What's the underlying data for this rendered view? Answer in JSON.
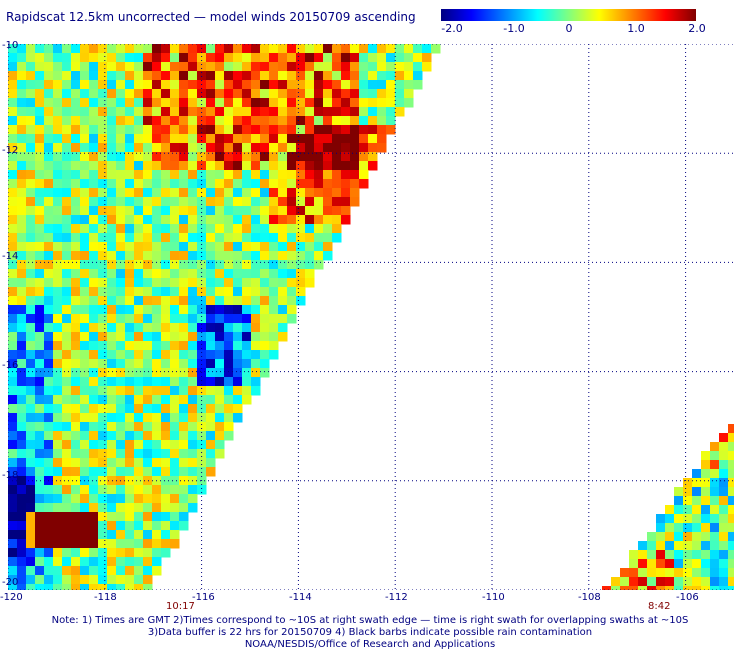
{
  "title": "Rapidscat 12.5km uncorrected — model winds 20150709 ascending",
  "colorbar": {
    "ticks": [
      "-2.0",
      "-1.0",
      "0",
      "1.0",
      "2.0"
    ],
    "range": [
      -2.0,
      2.0
    ],
    "colors": [
      "#000080",
      "#0000ff",
      "#0080ff",
      "#00ffff",
      "#80ff80",
      "#ffff00",
      "#ff8000",
      "#ff0000",
      "#800000"
    ]
  },
  "map": {
    "lon_range": [
      -120,
      -105
    ],
    "lat_range": [
      -20,
      -10
    ],
    "lon_ticks": [
      "-120",
      "-118",
      "-116",
      "-114",
      "-112",
      "-110",
      "-108",
      "-106"
    ],
    "lat_ticks": [
      "-10",
      "-12",
      "-14",
      "-16",
      "-18",
      "-20"
    ],
    "grid_color": "#000080",
    "swath_times": [
      "10:17",
      "8:42"
    ]
  },
  "notes": [
    "Note: 1) Times are GMT 2)Times correspond to ~10S at right swath edge — time is right swath for overlapping swaths at ~10S",
    "3)Data buffer is 22 hrs for 20150709 4) Black barbs indicate possible rain contamination",
    "NOAA/NESDIS/Office of Research and Applications"
  ]
}
